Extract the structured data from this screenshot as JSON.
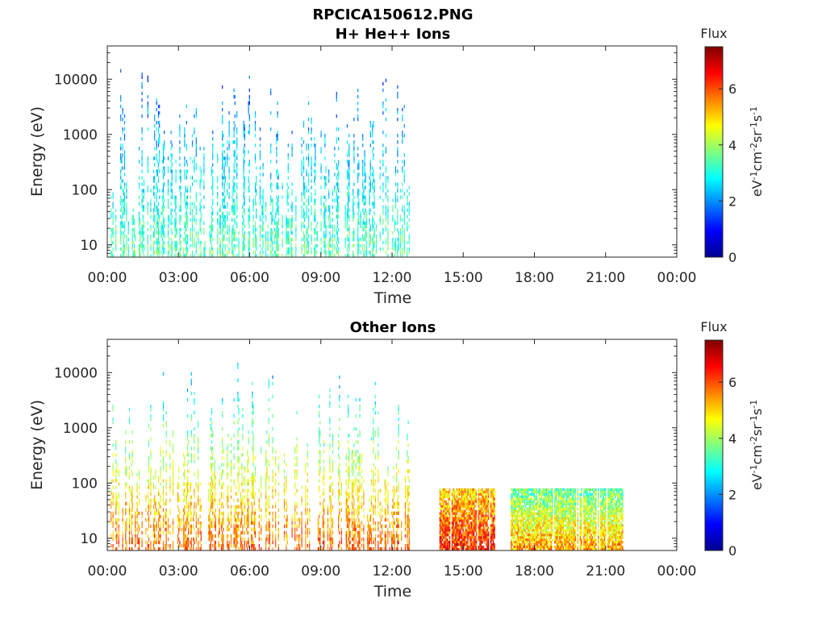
{
  "figure_title": "RPCICA150612.PNG",
  "colormap": "jet",
  "chart_data": [
    {
      "type": "heatmap",
      "title": "H+ He++ Ions",
      "xlabel": "Time",
      "ylabel": "Energy (eV)",
      "x_ticks": [
        "00:00",
        "03:00",
        "06:00",
        "09:00",
        "12:00",
        "15:00",
        "18:00",
        "21:00",
        "00:00"
      ],
      "x_range_hours": [
        0,
        24
      ],
      "y_scale": "log",
      "y_ticks": [
        {
          "value": 10,
          "label": "10"
        },
        {
          "value": 100,
          "label": "100"
        },
        {
          "value": 1000,
          "label": "1000"
        },
        {
          "value": 10000,
          "label": "10000"
        }
      ],
      "y_range": [
        6,
        40000
      ],
      "colorbar": {
        "title": "Flux",
        "unit": "eV-1cm-2sr-1s-1",
        "range": [
          0,
          7.5
        ],
        "ticks": [
          0,
          2,
          4,
          6
        ]
      },
      "regions": [
        {
          "t_start": 0.1,
          "t_end": 12.75,
          "e_min": 6,
          "e_max": 20000,
          "flux_low_energy": 3.5,
          "flux_high_energy": 1.5,
          "sparsity": "sparse vertical streaks"
        }
      ]
    },
    {
      "type": "heatmap",
      "title": "Other Ions",
      "xlabel": "Time",
      "ylabel": "Energy (eV)",
      "x_ticks": [
        "00:00",
        "03:00",
        "06:00",
        "09:00",
        "12:00",
        "15:00",
        "18:00",
        "21:00",
        "00:00"
      ],
      "x_range_hours": [
        0,
        24
      ],
      "y_scale": "log",
      "y_ticks": [
        {
          "value": 10,
          "label": "10"
        },
        {
          "value": 100,
          "label": "100"
        },
        {
          "value": 1000,
          "label": "1000"
        },
        {
          "value": 10000,
          "label": "10000"
        }
      ],
      "y_range": [
        6,
        40000
      ],
      "colorbar": {
        "title": "Flux",
        "unit": "eV-1cm-2sr-1s-1",
        "range": [
          0,
          7.5
        ],
        "ticks": [
          0,
          2,
          4,
          6
        ]
      },
      "regions": [
        {
          "t_start": 0.1,
          "t_end": 12.75,
          "e_min": 6,
          "e_max": 20000,
          "flux_low_energy": 6.0,
          "flux_high_energy": 2.0,
          "sparsity": "sparse vertical streaks"
        },
        {
          "t_start": 14.0,
          "t_end": 16.3,
          "e_min": 6,
          "e_max": 80,
          "flux_low_energy": 6.5,
          "flux_high_energy": 5.0,
          "sparsity": "dense"
        },
        {
          "t_start": 17.0,
          "t_end": 21.7,
          "e_min": 6,
          "e_max": 80,
          "flux_low_energy": 5.5,
          "flux_high_energy": 3.5,
          "sparsity": "dense"
        }
      ]
    }
  ]
}
